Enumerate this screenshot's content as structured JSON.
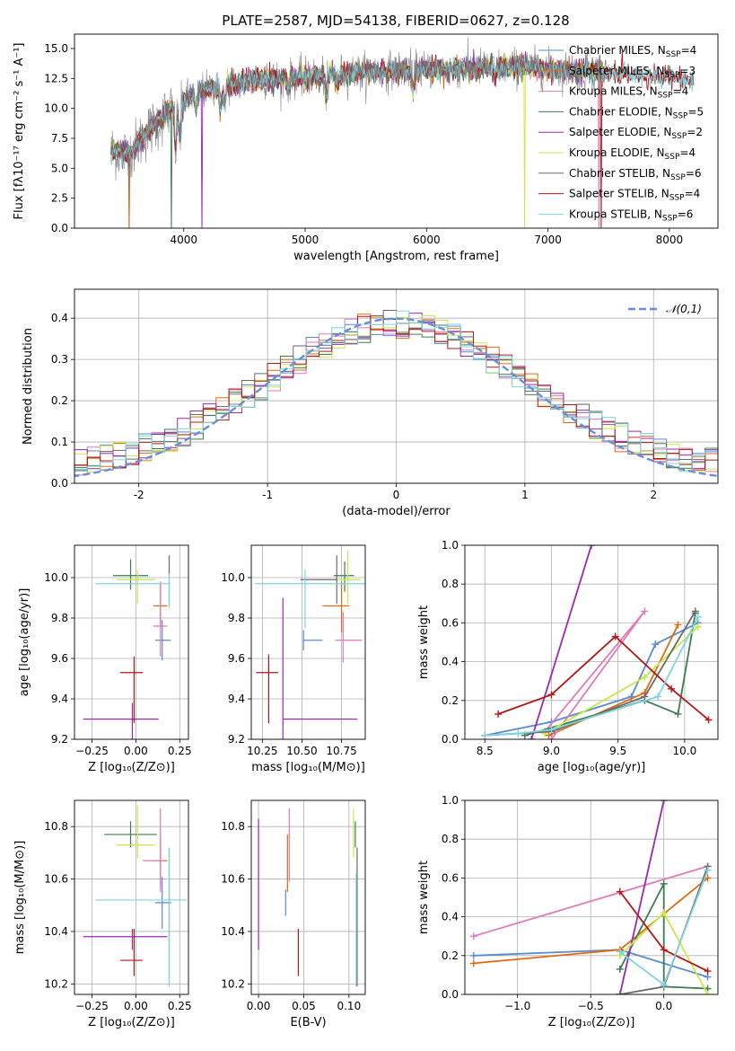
{
  "figure": {
    "title": "PLATE=2587, MJD=54138, FIBERID=0627, z=0.128"
  },
  "colors": {
    "Chabrier MILES": "#5a8ad0",
    "Salpeter MILES": "#e06a10",
    "Kroupa MILES": "#e07ab8",
    "Chabrier ELODIE": "#3d7a50",
    "Salpeter ELODIE": "#9a28b0",
    "Kroupa ELODIE": "#c9e84a",
    "Chabrier STELIB": "#6a6a6a",
    "Salpeter STELIB": "#b01818",
    "Kroupa STELIB": "#7ed4e0"
  },
  "chart_data": [
    {
      "id": "spectrum",
      "type": "line",
      "title": "PLATE=2587, MJD=54138, FIBERID=0627, z=0.128",
      "xlabel": "wavelength [Angstrom, rest frame]",
      "ylabel": "Flux [fλ10⁻¹⁷ erg cm⁻² s⁻¹ A⁻¹]",
      "xlim": [
        3100,
        8400
      ],
      "ylim": [
        0,
        16.2
      ],
      "xticks": [
        4000,
        5000,
        6000,
        7000,
        8000
      ],
      "yticks": [
        0.0,
        2.5,
        5.0,
        7.5,
        10.0,
        12.5,
        15.0
      ],
      "grid": false,
      "legend_position": "top-right",
      "continuum_nodes": [
        [
          3400,
          6.5
        ],
        [
          3550,
          6.2
        ],
        [
          3700,
          8.0
        ],
        [
          3900,
          10.0
        ],
        [
          4100,
          11.3
        ],
        [
          4300,
          11.9
        ],
        [
          4600,
          12.4
        ],
        [
          5000,
          12.6
        ],
        [
          5400,
          13.0
        ],
        [
          5800,
          13.2
        ],
        [
          6200,
          13.3
        ],
        [
          6500,
          13.4
        ],
        [
          6800,
          13.5
        ],
        [
          7100,
          13.2
        ],
        [
          7400,
          13.0
        ],
        [
          7700,
          12.8
        ],
        [
          8000,
          12.6
        ],
        [
          8200,
          12.4
        ]
      ],
      "legend": [
        "Chabrier MILES, N$_{SSP}$=4",
        "Salpeter MILES, N$_{SSP}$=3",
        "Kroupa MILES, N$_{SSP}$=4",
        "Chabrier ELODIE, N$_{SSP}$=5",
        "Salpeter ELODIE, N$_{SSP}$=2",
        "Kroupa ELODIE, N$_{SSP}$=4",
        "Chabrier STELIB, N$_{SSP}$=6",
        "Salpeter STELIB, N$_{SSP}$=4",
        "Kroupa STELIB, N$_{SSP}$=6"
      ],
      "legend_plain": [
        "Chabrier MILES, N",
        "Salpeter MILES, N",
        "Kroupa MILES, N",
        "Chabrier ELODIE, N",
        "Salpeter ELODIE, N",
        "Kroupa ELODIE, N",
        "Chabrier STELIB, N",
        "Salpeter STELIB, N",
        "Kroupa STELIB, N"
      ],
      "legend_sub": "SSP",
      "legend_n": [
        "=4",
        "=3",
        "=4",
        "=5",
        "=2",
        "=4",
        "=6",
        "=4",
        "=6"
      ]
    },
    {
      "id": "residuals",
      "type": "histogram",
      "xlabel": "(data-model)/error",
      "ylabel": "Normed distribution",
      "xlim": [
        -2.5,
        2.5
      ],
      "ylim": [
        0,
        0.47
      ],
      "xticks": [
        -2,
        -1,
        0,
        1,
        2
      ],
      "yticks": [
        0.0,
        0.1,
        0.2,
        0.3,
        0.4
      ],
      "grid": true,
      "legend": [
        "𝒩(0,1)"
      ],
      "legend_position": "top-right",
      "bin_width": 0.1,
      "gaussian": {
        "mean": 0,
        "sigma": 1
      }
    },
    {
      "id": "age_vs_Z",
      "type": "errorbar",
      "xlabel": "Z [log₁₀(Z/Z⊙)]",
      "ylabel": "age  [log₁₀(age/yr)]",
      "xlim": [
        -0.35,
        0.3
      ],
      "ylim": [
        9.2,
        10.16
      ],
      "xticks": [
        -0.25,
        0.0,
        0.25
      ],
      "xticklabels": [
        "−0.25",
        "0.00",
        "0.25"
      ],
      "yticks": [
        9.2,
        9.4,
        9.6,
        9.8,
        10.0
      ],
      "grid": true,
      "series": [
        {
          "name": "Chabrier MILES",
          "x": 0.15,
          "xerr": [
            0.04,
            0.05
          ],
          "y": 9.69,
          "yerr": [
            0.1,
            0.1
          ]
        },
        {
          "name": "Salpeter MILES",
          "x": 0.14,
          "xerr": [
            0.04,
            0.04
          ],
          "y": 9.86,
          "yerr": [
            0.1,
            0.12
          ]
        },
        {
          "name": "Kroupa MILES",
          "x": 0.14,
          "xerr": [
            0.04,
            0.04
          ],
          "y": 9.76,
          "yerr": [
            0.15,
            0.22
          ]
        },
        {
          "name": "Chabrier ELODIE",
          "x": -0.03,
          "xerr": [
            0.1,
            0.1
          ],
          "y": 10.01,
          "yerr": [
            0.07,
            0.08
          ]
        },
        {
          "name": "Salpeter ELODIE",
          "x": -0.02,
          "xerr": [
            0.28,
            0.15
          ],
          "y": 9.3,
          "yerr": [
            0.1,
            0.08
          ]
        },
        {
          "name": "Kroupa ELODIE",
          "x": 0.01,
          "xerr": [
            0.12,
            0.1
          ],
          "y": 9.99,
          "yerr": [
            0.12,
            0.05
          ]
        },
        {
          "name": "Chabrier STELIB",
          "x": 0.19,
          "xerr": [
            0.0,
            0.0
          ],
          "y": 9.99,
          "yerr": [
            0.12,
            0.12
          ]
        },
        {
          "name": "Salpeter STELIB",
          "x": -0.01,
          "xerr": [
            0.08,
            0.05
          ],
          "y": 9.53,
          "yerr": [
            0.25,
            0.08
          ]
        },
        {
          "name": "Kroupa STELIB",
          "x": 0.19,
          "xerr": [
            0.42,
            0.0
          ],
          "y": 9.97,
          "yerr": [
            0.12,
            0.05
          ]
        }
      ]
    },
    {
      "id": "age_vs_mass",
      "type": "errorbar",
      "xlabel": "mass [log₁₀(M/M⊙)]",
      "ylabel": "",
      "xlim": [
        10.18,
        10.9
      ],
      "ylim": [
        9.2,
        10.16
      ],
      "xticks": [
        10.25,
        10.5,
        10.75
      ],
      "xticklabels": [
        "10.25",
        "10.50",
        "10.75"
      ],
      "yticks": [
        9.2,
        9.4,
        9.6,
        9.8,
        10.0
      ],
      "grid": true,
      "series": [
        {
          "name": "Chabrier MILES",
          "x": 10.51,
          "xerr": [
            0.0,
            0.12
          ],
          "y": 9.69,
          "yerr": [
            0.05,
            0.05
          ]
        },
        {
          "name": "Salpeter MILES",
          "x": 10.75,
          "xerr": [
            0.12,
            0.05
          ],
          "y": 9.86,
          "yerr": [
            0.13,
            0.12
          ]
        },
        {
          "name": "Kroupa MILES",
          "x": 10.76,
          "xerr": [
            0.05,
            0.12
          ],
          "y": 9.69,
          "yerr": [
            0.11,
            0.14
          ]
        },
        {
          "name": "Chabrier ELODIE",
          "x": 10.77,
          "xerr": [
            0.07,
            0.06
          ],
          "y": 10.01,
          "yerr": [
            0.08,
            0.07
          ]
        },
        {
          "name": "Salpeter ELODIE",
          "x": 10.38,
          "xerr": [
            0.0,
            0.47
          ],
          "y": 9.3,
          "yerr": [
            0.28,
            0.6
          ]
        },
        {
          "name": "Kroupa ELODIE",
          "x": 10.79,
          "xerr": [
            0.07,
            0.08
          ],
          "y": 9.99,
          "yerr": [
            0.12,
            0.14
          ]
        },
        {
          "name": "Chabrier STELIB",
          "x": 10.72,
          "xerr": [
            0.23,
            0.0
          ],
          "y": 9.99,
          "yerr": [
            0.12,
            0.12
          ]
        },
        {
          "name": "Salpeter STELIB",
          "x": 10.29,
          "xerr": [
            0.08,
            0.06
          ],
          "y": 9.53,
          "yerr": [
            0.25,
            0.09
          ]
        },
        {
          "name": "Kroupa STELIB",
          "x": 10.52,
          "xerr": [
            0.32,
            0.39
          ],
          "y": 9.97,
          "yerr": [
            0.22,
            0.07
          ]
        }
      ]
    },
    {
      "id": "weights_vs_age",
      "type": "line",
      "xlabel": "age  [log₁₀(age/yr)]",
      "ylabel": "mass weight",
      "xlim": [
        8.35,
        10.25
      ],
      "ylim": [
        0,
        1.0
      ],
      "xticks": [
        8.5,
        9.0,
        9.5,
        10.0
      ],
      "xticklabels": [
        "8.5",
        "9.0",
        "9.5",
        "10.0"
      ],
      "yticks": [
        0.0,
        0.2,
        0.4,
        0.6,
        0.8,
        1.0
      ],
      "grid": true,
      "series": [
        {
          "name": "Chabrier MILES",
          "x": [
            8.5,
            9.0,
            9.6,
            9.78,
            10.1
          ],
          "y": [
            0.02,
            0.09,
            0.22,
            0.49,
            0.6
          ]
        },
        {
          "name": "Salpeter MILES",
          "x": [
            8.98,
            9.7,
            9.95
          ],
          "y": [
            0.02,
            0.24,
            0.59
          ]
        },
        {
          "name": "Kroupa MILES",
          "x": [
            8.95,
            9.7,
            9.0
          ],
          "y": [
            0.04,
            0.66,
            0.0
          ]
        },
        {
          "name": "Chabrier ELODIE",
          "x": [
            8.8,
            9.7,
            9.95,
            10.08
          ],
          "y": [
            0.02,
            0.2,
            0.13,
            0.65
          ]
        },
        {
          "name": "Salpeter ELODIE",
          "x": [
            8.85,
            9.3
          ],
          "y": [
            0.0,
            1.0
          ]
        },
        {
          "name": "Kroupa ELODIE",
          "x": [
            8.95,
            9.7,
            10.1
          ],
          "y": [
            0.03,
            0.32,
            0.58
          ]
        },
        {
          "name": "Chabrier STELIB",
          "x": [
            8.5,
            9.0,
            9.7,
            10.08
          ],
          "y": [
            0.02,
            0.04,
            0.22,
            0.66
          ]
        },
        {
          "name": "Salpeter STELIB",
          "x": [
            8.6,
            9.0,
            9.48,
            9.9,
            10.18
          ],
          "y": [
            0.13,
            0.23,
            0.53,
            0.26,
            0.1
          ]
        },
        {
          "name": "Kroupa STELIB",
          "x": [
            8.5,
            8.75,
            9.0,
            9.8,
            10.1
          ],
          "y": [
            0.02,
            0.03,
            0.05,
            0.22,
            0.63
          ]
        }
      ]
    },
    {
      "id": "mass_vs_Z",
      "type": "errorbar",
      "xlabel": "Z [log₁₀(Z/Z⊙)]",
      "ylabel": "mass [log₁₀(M/M⊙)]",
      "xlim": [
        -0.35,
        0.3
      ],
      "ylim": [
        10.16,
        10.9
      ],
      "xticks": [
        -0.25,
        0.0,
        0.25
      ],
      "xticklabels": [
        "−0.25",
        "0.00",
        "0.25"
      ],
      "yticks": [
        10.2,
        10.4,
        10.6,
        10.8
      ],
      "grid": true,
      "series": [
        {
          "name": "Chabrier MILES",
          "x": 0.15,
          "xerr": [
            0.04,
            0.05
          ],
          "y": 10.51,
          "yerr": [
            0.1,
            0.1
          ]
        },
        {
          "name": "Salpeter MILES",
          "x": 0.14,
          "xerr": [
            0.04,
            0.04
          ],
          "y": 10.67,
          "yerr": [
            0.1,
            0.1
          ]
        },
        {
          "name": "Kroupa MILES",
          "x": 0.14,
          "xerr": [
            0.1,
            0.02
          ],
          "y": 10.67,
          "yerr": [
            0.12,
            0.2
          ]
        },
        {
          "name": "Chabrier ELODIE",
          "x": -0.03,
          "xerr": [
            0.15,
            0.15
          ],
          "y": 10.77,
          "yerr": [
            0.05,
            0.05
          ]
        },
        {
          "name": "Salpeter ELODIE",
          "x": -0.02,
          "xerr": [
            0.28,
            0.2
          ],
          "y": 10.38,
          "yerr": [
            0.05,
            0.03
          ]
        },
        {
          "name": "Kroupa ELODIE",
          "x": 0.01,
          "xerr": [
            0.12,
            0.1
          ],
          "y": 10.73,
          "yerr": [
            0.05,
            0.15
          ]
        },
        {
          "name": "Chabrier STELIB",
          "x": 0.19,
          "xerr": [
            0.0,
            0.0
          ],
          "y": 10.52,
          "yerr": [
            0.3,
            0.2
          ]
        },
        {
          "name": "Salpeter STELIB",
          "x": -0.01,
          "xerr": [
            0.08,
            0.05
          ],
          "y": 10.29,
          "yerr": [
            0.06,
            0.12
          ]
        },
        {
          "name": "Kroupa STELIB",
          "x": 0.19,
          "xerr": [
            0.42,
            0.1
          ],
          "y": 10.52,
          "yerr": [
            0.33,
            0.2
          ]
        }
      ]
    },
    {
      "id": "mass_vs_ebv",
      "type": "errorbar",
      "xlabel": "E(B-V)",
      "ylabel": "",
      "xlim": [
        -0.008,
        0.118
      ],
      "ylim": [
        10.16,
        10.9
      ],
      "xticks": [
        0.0,
        0.05,
        0.1
      ],
      "xticklabels": [
        "0.00",
        "0.05",
        "0.10"
      ],
      "yticks": [
        10.2,
        10.4,
        10.6,
        10.8
      ],
      "grid": true,
      "series": [
        {
          "name": "Chabrier MILES",
          "x": 0.03,
          "y": 10.51,
          "yerr": [
            0.05,
            0.05
          ]
        },
        {
          "name": "Salpeter MILES",
          "x": 0.032,
          "y": 10.67,
          "yerr": [
            0.12,
            0.1
          ]
        },
        {
          "name": "Kroupa MILES",
          "x": 0.034,
          "y": 10.67,
          "yerr": [
            0.08,
            0.2
          ]
        },
        {
          "name": "Chabrier ELODIE",
          "x": 0.107,
          "y": 10.77,
          "yerr": [
            0.05,
            0.05
          ]
        },
        {
          "name": "Salpeter ELODIE",
          "x": 0.0,
          "y": 10.38,
          "yerr": [
            0.05,
            0.45
          ]
        },
        {
          "name": "Kroupa ELODIE",
          "x": 0.105,
          "y": 10.73,
          "yerr": [
            0.05,
            0.14
          ]
        },
        {
          "name": "Chabrier STELIB",
          "x": 0.109,
          "y": 10.52,
          "yerr": [
            0.33,
            0.2
          ]
        },
        {
          "name": "Salpeter STELIB",
          "x": 0.044,
          "y": 10.29,
          "yerr": [
            0.06,
            0.12
          ]
        },
        {
          "name": "Kroupa STELIB",
          "x": 0.108,
          "y": 10.52,
          "yerr": [
            0.33,
            0.1
          ]
        }
      ]
    },
    {
      "id": "weights_vs_Z",
      "type": "line",
      "xlabel": "Z [log₁₀(Z/Z⊙)]",
      "ylabel": "mass weight",
      "xlim": [
        -1.36,
        0.37
      ],
      "ylim": [
        0,
        1.0
      ],
      "xticks": [
        -1.0,
        -0.5,
        0.0
      ],
      "xticklabels": [
        "−1.0",
        "−0.5",
        "0.0"
      ],
      "yticks": [
        0.0,
        0.2,
        0.4,
        0.6,
        0.8,
        1.0
      ],
      "grid": true,
      "series": [
        {
          "name": "Chabrier MILES",
          "x": [
            -1.3,
            -0.3,
            0.3
          ],
          "y": [
            0.2,
            0.23,
            0.09
          ]
        },
        {
          "name": "Salpeter MILES",
          "x": [
            -1.3,
            -0.3,
            0.3
          ],
          "y": [
            0.16,
            0.23,
            0.6
          ]
        },
        {
          "name": "Kroupa MILES",
          "x": [
            -1.3,
            0.3
          ],
          "y": [
            0.3,
            0.66
          ]
        },
        {
          "name": "Chabrier ELODIE",
          "x": [
            -0.3,
            0.0,
            0.0,
            0.3
          ],
          "y": [
            0.13,
            0.57,
            0.04,
            0.03
          ]
        },
        {
          "name": "Salpeter ELODIE",
          "x": [
            -0.3,
            0.0
          ],
          "y": [
            0.0,
            1.0
          ]
        },
        {
          "name": "Kroupa ELODIE",
          "x": [
            -0.3,
            0.0,
            0.3
          ],
          "y": [
            0.2,
            0.42,
            0.0
          ]
        },
        {
          "name": "Chabrier STELIB",
          "x": [
            -0.3,
            0.0,
            0.3
          ],
          "y": [
            0.0,
            0.04,
            0.66
          ]
        },
        {
          "name": "Salpeter STELIB",
          "x": [
            -0.3,
            0.0,
            0.3
          ],
          "y": [
            0.53,
            0.23,
            0.12
          ]
        },
        {
          "name": "Kroupa STELIB",
          "x": [
            -0.3,
            0.0,
            0.3
          ],
          "y": [
            0.22,
            0.05,
            0.64
          ]
        }
      ]
    }
  ]
}
